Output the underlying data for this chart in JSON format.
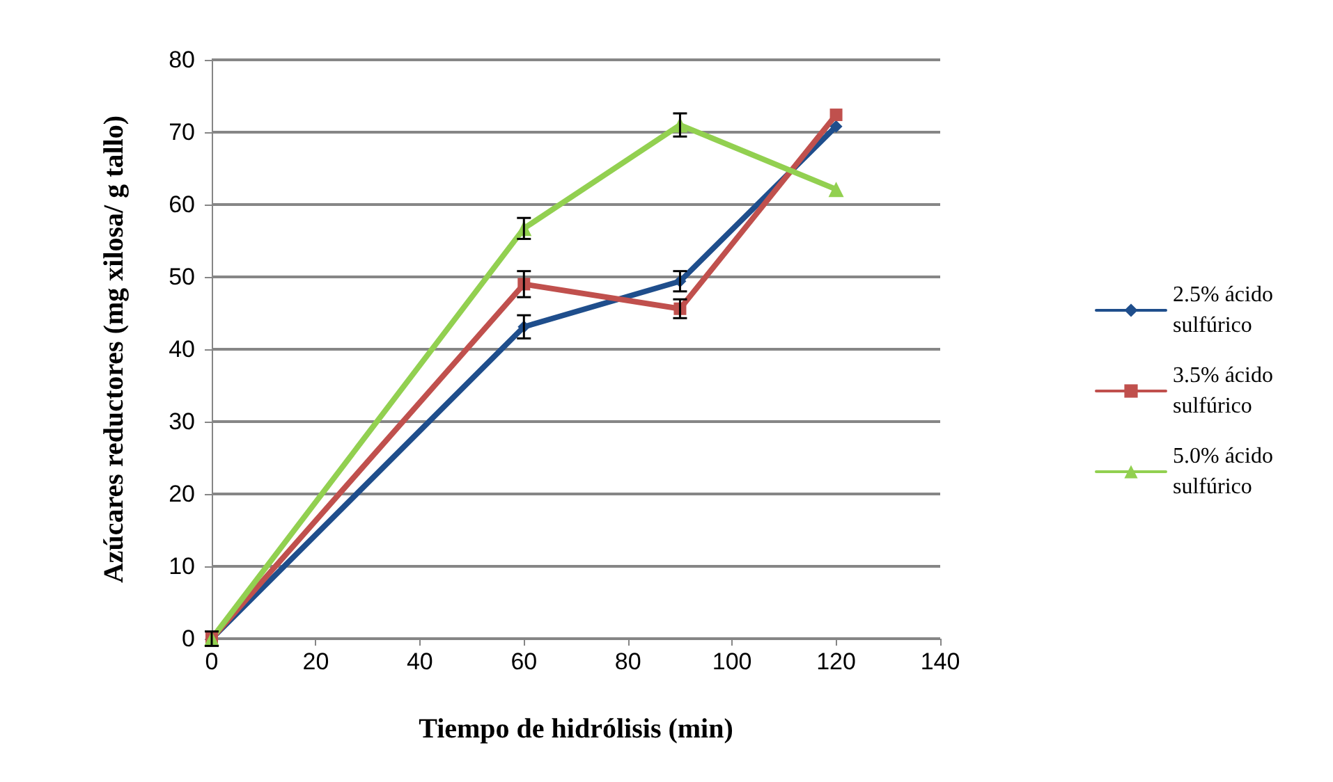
{
  "chart_data": {
    "type": "line",
    "xlabel": "Tiempo de hidrólisis (min)",
    "ylabel": "Azúcares reductores (mg xilosa/ g tallo)",
    "x": [
      0,
      60,
      90,
      120
    ],
    "series": [
      {
        "name": "2.5% ácido sulfúrico",
        "color": "#1f4e8c",
        "marker": "diamond",
        "values": [
          0,
          43.1,
          49.4,
          70.8
        ],
        "errors": [
          1,
          1.6,
          1.4,
          null
        ]
      },
      {
        "name": "3.5% ácido sulfúrico",
        "color": "#c0504d",
        "marker": "square",
        "values": [
          0,
          49.0,
          45.6,
          72.4
        ],
        "errors": [
          null,
          1.8,
          1.3,
          null
        ]
      },
      {
        "name": "5.0% ácido sulfúrico",
        "color": "#92d050",
        "marker": "triangle",
        "values": [
          0,
          56.7,
          71.0,
          62.1
        ],
        "errors": [
          null,
          1.45,
          1.6,
          null
        ]
      }
    ],
    "xlim": [
      0,
      140
    ],
    "xticks": [
      0,
      20,
      40,
      60,
      80,
      100,
      120,
      140
    ],
    "ylim": [
      0,
      80
    ],
    "yticks": [
      0,
      10,
      20,
      30,
      40,
      50,
      60,
      70,
      80
    ],
    "grid": "y",
    "legend": "right",
    "line_style": "solid"
  }
}
